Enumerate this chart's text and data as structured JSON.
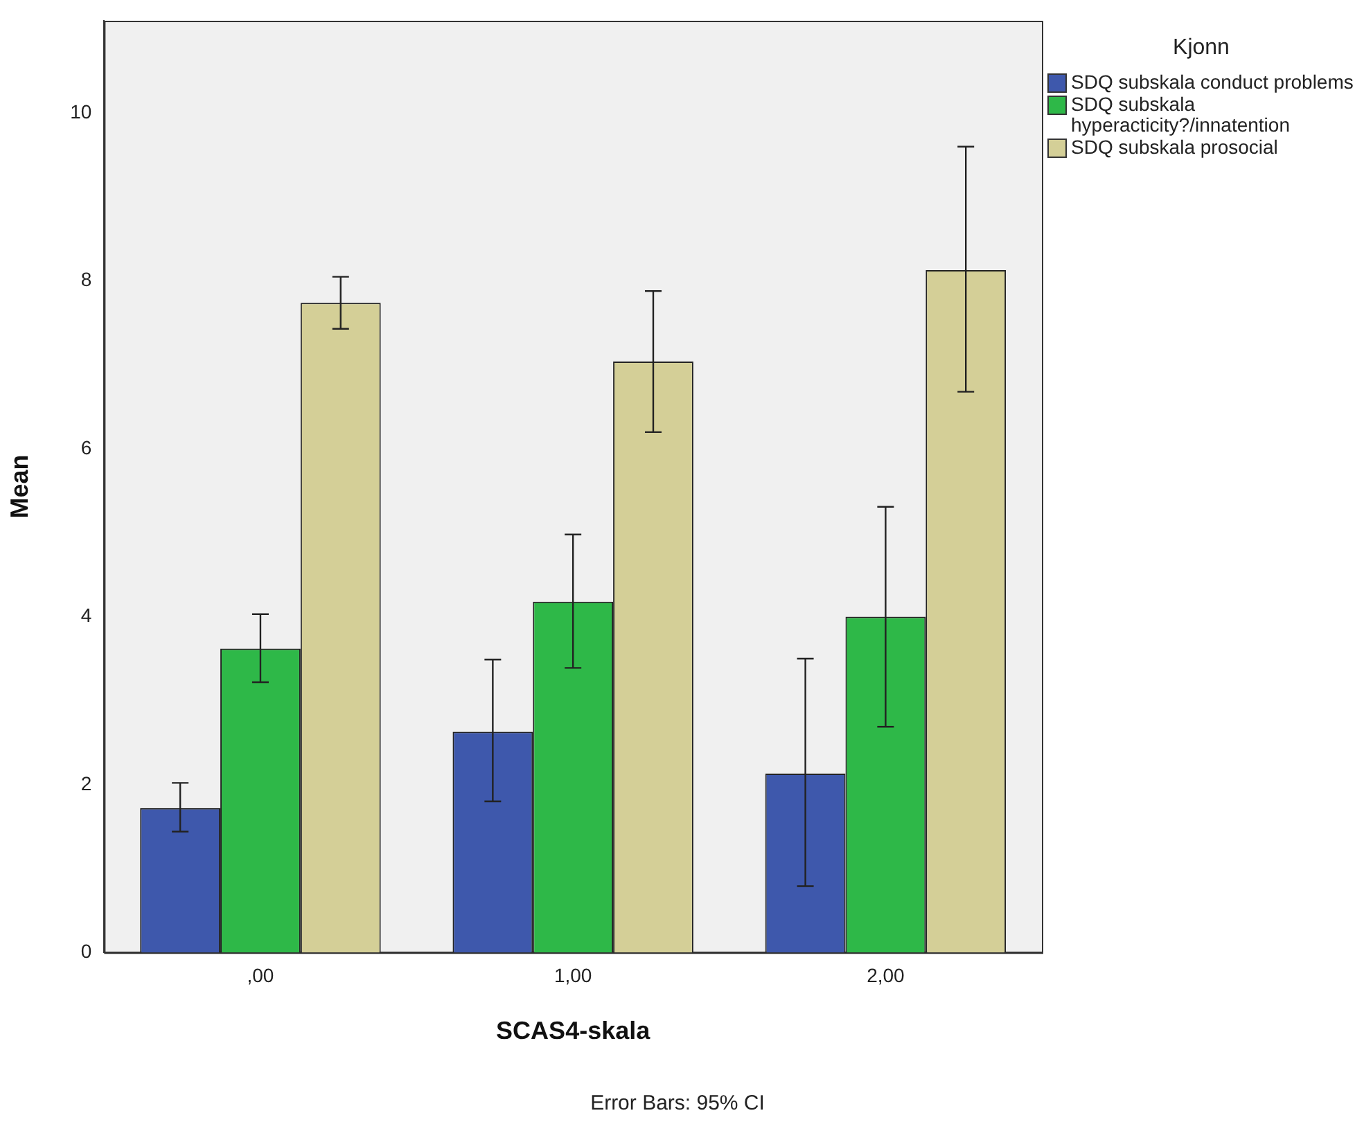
{
  "chart_data": {
    "type": "bar",
    "xlabel": "SCAS4-skala",
    "ylabel": "Mean",
    "legend_title": "Kjonn",
    "legend": "right",
    "categories": [
      ",00",
      "1,00",
      "2,00"
    ],
    "series": [
      {
        "name": "SDQ subskala conduct problems",
        "color": "#3e58ac",
        "values": [
          1.72,
          2.63,
          2.13
        ],
        "errors": [
          [
            1.44,
            2.02
          ],
          [
            1.8,
            3.49
          ],
          [
            0.79,
            3.5
          ]
        ]
      },
      {
        "name": "SDQ subskala hyperacticity?/innatention",
        "color": "#2eb848",
        "values": [
          3.62,
          4.18,
          4.0
        ],
        "errors": [
          [
            3.22,
            4.03
          ],
          [
            3.39,
            4.98
          ],
          [
            2.69,
            5.31
          ]
        ]
      },
      {
        "name": "SDQ subskala prosocial",
        "color": "#d4cf97",
        "values": [
          7.74,
          7.04,
          8.13
        ],
        "errors": [
          [
            7.43,
            8.05
          ],
          [
            6.2,
            7.88
          ],
          [
            6.68,
            9.6
          ]
        ]
      }
    ],
    "ylim": [
      0,
      11.1
    ],
    "yticks": [
      0,
      2,
      4,
      6,
      8,
      10
    ],
    "grid": false,
    "annotations": [
      "Error Bars: 95% CI"
    ]
  }
}
